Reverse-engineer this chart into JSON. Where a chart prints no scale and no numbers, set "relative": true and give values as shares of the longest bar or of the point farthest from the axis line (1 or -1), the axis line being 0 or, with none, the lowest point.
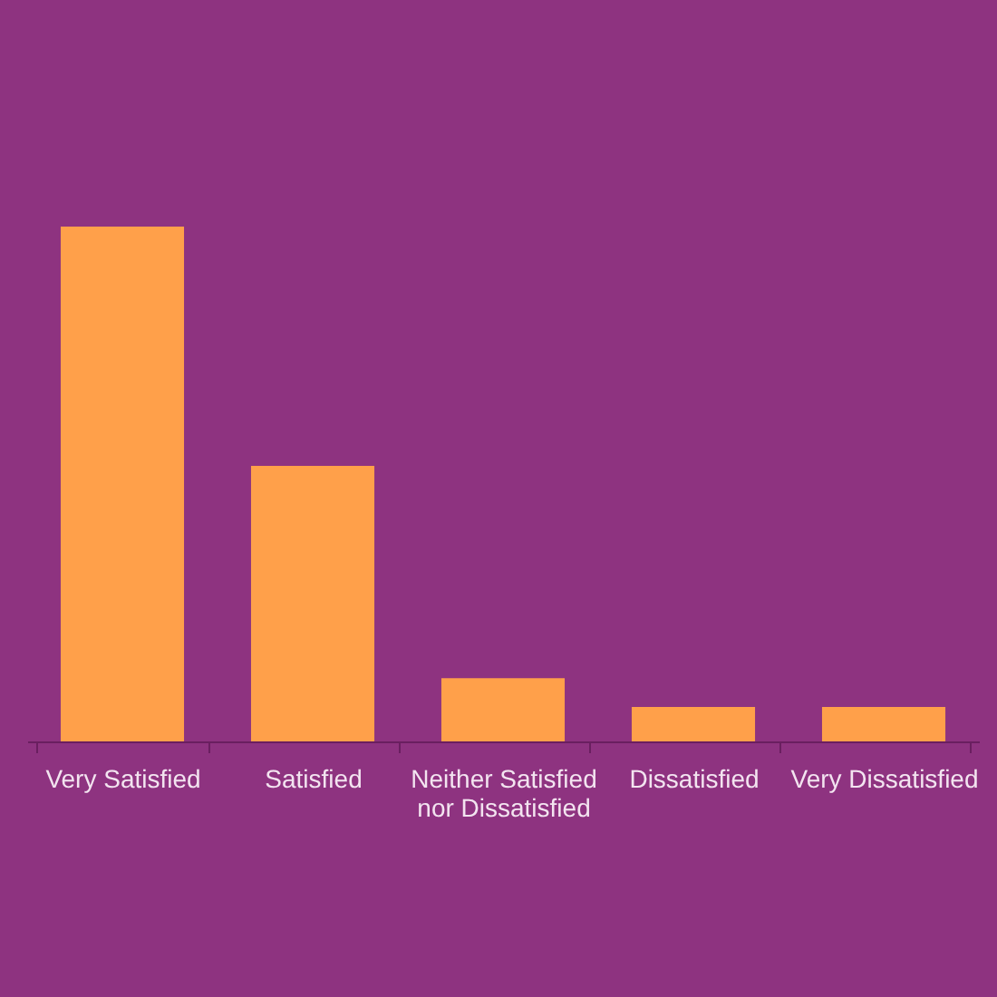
{
  "chart_data": {
    "type": "bar",
    "relative": true,
    "color": "#ffa04a",
    "categories": [
      "Very Satisfied",
      "Satisfied",
      "Neither Satisfied nor Dissatisfied",
      "Dissatisfied",
      "Very Dissatisfied"
    ],
    "values": [
      1,
      0.535,
      0.123,
      0.067,
      0.067
    ]
  }
}
